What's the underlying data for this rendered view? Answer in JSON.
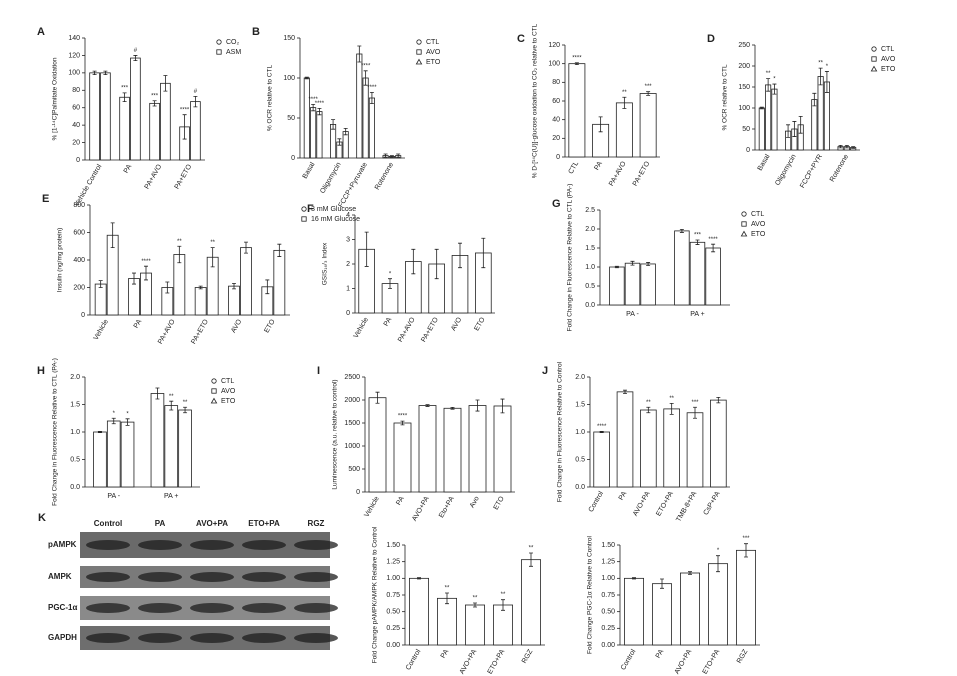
{
  "chart_data": [
    {
      "type": "bar",
      "panel": "A",
      "ylabel": "% [1-¹⁴C]Palmitate Oxidation",
      "categories": [
        "Vehicle Control",
        "PA",
        "PA+AVO",
        "PA+ETO"
      ],
      "legend": "right",
      "series": [
        {
          "name": "CO₂",
          "color": "#ffffff",
          "values": [
            100,
            72,
            65,
            38
          ],
          "errors": [
            2,
            5,
            3,
            14
          ],
          "significance": [
            null,
            "***",
            "***",
            "****"
          ]
        },
        {
          "name": "ASM",
          "color": "#ffffff",
          "values": [
            100,
            117,
            88,
            67
          ],
          "errors": [
            2,
            3,
            9,
            6
          ],
          "significance": [
            null,
            "#",
            null,
            "#"
          ]
        }
      ],
      "ylim": [
        0,
        140
      ],
      "yticks": [
        0,
        20,
        40,
        60,
        80,
        100,
        120,
        140
      ]
    },
    {
      "type": "bar",
      "panel": "B",
      "ylabel": "% OCR relative to CTL",
      "categories": [
        "Basal",
        "Oligomycin",
        "FCCP+Pyruvate",
        "Rotenone"
      ],
      "legend": "right",
      "series": [
        {
          "name": "CTL",
          "color": "#ffffff",
          "values": [
            100,
            42,
            130,
            3
          ],
          "errors": [
            1,
            6,
            10,
            2
          ],
          "significance": [
            null,
            null,
            null,
            null
          ]
        },
        {
          "name": "AVO",
          "color": "#ffffff",
          "values": [
            63,
            20,
            100,
            2
          ],
          "errors": [
            4,
            4,
            9,
            1
          ],
          "significance": [
            "****",
            null,
            "****",
            null
          ]
        },
        {
          "name": "ETO",
          "color": "#ffffff",
          "values": [
            58,
            33,
            75,
            3
          ],
          "errors": [
            4,
            4,
            7,
            2
          ],
          "significance": [
            "****",
            null,
            "****",
            null
          ]
        }
      ],
      "ylim": [
        0,
        150
      ],
      "yticks": [
        0,
        50,
        100,
        150
      ]
    },
    {
      "type": "bar",
      "panel": "C",
      "ylabel": "% D-[¹⁴C(U)]-glucose oxidation to CO₂ relative to CTL",
      "categories": [
        "CTL",
        "PA",
        "PA+AVO",
        "PA+ETO"
      ],
      "values": [
        100,
        35,
        58,
        68
      ],
      "errors": [
        1,
        8,
        6,
        2
      ],
      "significance": [
        "****",
        null,
        "**",
        "***"
      ],
      "color": "#ffffff",
      "ylim": [
        0,
        120
      ],
      "yticks": [
        0,
        20,
        40,
        60,
        80,
        100,
        120
      ]
    },
    {
      "type": "bar",
      "panel": "D",
      "ylabel": "% OCR relative to CTL",
      "categories": [
        "Basal",
        "Oligomycin",
        "FCCP+PYR",
        "Rotenone"
      ],
      "legend": "right",
      "series": [
        {
          "name": "CTL",
          "color": "#ffffff",
          "values": [
            100,
            45,
            120,
            8
          ],
          "errors": [
            2,
            15,
            15,
            3
          ],
          "significance": [
            null,
            null,
            null,
            null
          ]
        },
        {
          "name": "AVO",
          "color": "#ffffff",
          "values": [
            155,
            50,
            175,
            8
          ],
          "errors": [
            15,
            18,
            20,
            3
          ],
          "significance": [
            "**",
            null,
            "**",
            null
          ]
        },
        {
          "name": "ETO",
          "color": "#ffffff",
          "values": [
            145,
            60,
            162,
            6
          ],
          "errors": [
            12,
            20,
            25,
            2
          ],
          "significance": [
            "*",
            null,
            "*",
            null
          ]
        }
      ],
      "ylim": [
        0,
        250
      ],
      "yticks": [
        0,
        50,
        100,
        150,
        200,
        250
      ]
    },
    {
      "type": "bar",
      "panel": "E",
      "ylabel": "Insulin (ng/mg protein)",
      "categories": [
        "Vehicle",
        "PA",
        "PA+AVO",
        "PA+ETO",
        "AVO",
        "ETO"
      ],
      "legend": "right",
      "series": [
        {
          "name": "3 mM Glucose",
          "color": "#ffffff",
          "values": [
            225,
            265,
            200,
            200,
            210,
            205
          ],
          "errors": [
            25,
            40,
            40,
            10,
            20,
            50
          ],
          "significance": [
            null,
            null,
            null,
            null,
            null,
            null
          ]
        },
        {
          "name": "16 mM Glucose",
          "color": "#ffffff",
          "values": [
            580,
            305,
            440,
            420,
            490,
            470
          ],
          "errors": [
            90,
            50,
            60,
            70,
            40,
            45
          ],
          "significance": [
            null,
            "****",
            "**",
            "**",
            null,
            null
          ]
        }
      ],
      "ylim": [
        0,
        800
      ],
      "yticks": [
        0,
        200,
        400,
        600,
        800
      ]
    },
    {
      "type": "bar",
      "panel": "F",
      "ylabel": "GSIS₁₆/₃ Index",
      "categories": [
        "Vehicle",
        "PA",
        "PA+AVO",
        "PA+ETO",
        "AVO",
        "ETO"
      ],
      "values": [
        2.6,
        1.2,
        2.1,
        2.0,
        2.35,
        2.45
      ],
      "errors": [
        0.7,
        0.2,
        0.5,
        0.6,
        0.5,
        0.6
      ],
      "significance": [
        null,
        "*",
        null,
        null,
        null,
        null
      ],
      "color": "#ffffff",
      "ylim": [
        0,
        4
      ],
      "yticks": [
        0,
        1,
        2,
        3,
        4
      ]
    },
    {
      "type": "bar",
      "panel": "G",
      "ylabel": "Fold Change in Fluorescence Relative to CTL (PA-)",
      "categories": [
        "PA -",
        "PA +"
      ],
      "legend": "right",
      "series": [
        {
          "name": "CTL",
          "color": "#ffffff",
          "values": [
            1.0,
            1.95
          ],
          "errors": [
            0.02,
            0.04
          ],
          "significance": [
            null,
            null
          ]
        },
        {
          "name": "AVO",
          "color": "#ffffff",
          "values": [
            1.1,
            1.65
          ],
          "errors": [
            0.05,
            0.06
          ],
          "significance": [
            null,
            "***"
          ]
        },
        {
          "name": "ETO",
          "color": "#ffffff",
          "values": [
            1.08,
            1.5
          ],
          "errors": [
            0.04,
            0.1
          ],
          "significance": [
            null,
            "****"
          ]
        }
      ],
      "ylim": [
        0,
        2.5
      ],
      "yticks": [
        {
          "value": 0,
          "label": "0.0"
        },
        0.5,
        {
          "value": 1,
          "label": "1.0"
        },
        1.5,
        {
          "value": 2,
          "label": "2.0"
        },
        2.5
      ]
    },
    {
      "type": "bar",
      "panel": "H",
      "ylabel": "Fold Change in Fluorescence Relative to CTL (PA-)",
      "categories": [
        "PA -",
        "PA +"
      ],
      "legend": "right",
      "series": [
        {
          "name": "CTL",
          "color": "#ffffff",
          "values": [
            1.0,
            1.7
          ],
          "errors": [
            0.01,
            0.1
          ],
          "significance": [
            null,
            null
          ]
        },
        {
          "name": "AVO",
          "color": "#ffffff",
          "values": [
            1.2,
            1.48
          ],
          "errors": [
            0.05,
            0.08
          ],
          "significance": [
            "*",
            "**"
          ]
        },
        {
          "name": "ETO",
          "color": "#ffffff",
          "values": [
            1.18,
            1.4
          ],
          "errors": [
            0.06,
            0.05
          ],
          "significance": [
            "*",
            "**"
          ]
        }
      ],
      "ylim": [
        0,
        2.0
      ],
      "yticks": [
        {
          "value": 0,
          "label": "0.0"
        },
        0.5,
        {
          "value": 1,
          "label": "1.0"
        },
        1.5,
        {
          "value": 2,
          "label": "2.0"
        }
      ]
    },
    {
      "type": "bar",
      "panel": "I",
      "ylabel": "Luminescence (a.u. relative to control)",
      "categories": [
        "Vehicle",
        "PA",
        "AVO+PA",
        "Eto+PA",
        "Avo",
        "ETO"
      ],
      "values": [
        2050,
        1500,
        1880,
        1820,
        1880,
        1870
      ],
      "errors": [
        120,
        40,
        20,
        20,
        120,
        150
      ],
      "significance": [
        null,
        "****",
        null,
        null,
        null,
        null
      ],
      "color": "#ffffff",
      "ylim": [
        0,
        2500
      ],
      "yticks": [
        0,
        500,
        1000,
        1500,
        2000,
        2500
      ]
    },
    {
      "type": "bar",
      "panel": "J",
      "ylabel": "Fold Change in Fluorescence Relative to Control",
      "categories": [
        "Control",
        "PA",
        "AVO+PA",
        "ETO+PA",
        "TMB-8+PA",
        "CsP+PA"
      ],
      "values": [
        1.0,
        1.73,
        1.4,
        1.42,
        1.35,
        1.58
      ],
      "errors": [
        0.01,
        0.03,
        0.05,
        0.1,
        0.1,
        0.05
      ],
      "significance": [
        "****",
        null,
        "**",
        "**",
        "***",
        null
      ],
      "color": "#ffffff",
      "ylim": [
        0,
        2.0
      ],
      "yticks": [
        {
          "value": 0,
          "label": "0.0"
        },
        0.5,
        {
          "value": 1,
          "label": "1.0"
        },
        1.5,
        {
          "value": 2,
          "label": "2.0"
        }
      ]
    },
    {
      "type": "bar",
      "ylabel": "Fold Change pAMPK/AMPK Relative to Control",
      "categories": [
        "Control",
        "PA",
        "AVO+PA",
        "ETO+PA",
        "RGZ"
      ],
      "values": [
        1.0,
        0.7,
        0.6,
        0.6,
        1.28
      ],
      "errors": [
        0.01,
        0.08,
        0.03,
        0.08,
        0.1
      ],
      "significance": [
        null,
        "**",
        "**",
        "**",
        "**"
      ],
      "color": "#ffffff",
      "ylim": [
        0,
        1.5
      ],
      "yticks": [
        {
          "value": 0,
          "label": "0.00"
        },
        0.25,
        {
          "value": 0.5,
          "label": "0.50"
        },
        0.75,
        {
          "value": 1,
          "label": "1.00"
        },
        1.25,
        {
          "value": 1.5,
          "label": "1.50"
        }
      ]
    },
    {
      "type": "bar",
      "ylabel": "Fold Change PGC-1α Relative to Control",
      "categories": [
        "Control",
        "PA",
        "AVO+PA",
        "ETO+PA",
        "RGZ"
      ],
      "values": [
        1.0,
        0.92,
        1.08,
        1.22,
        1.42
      ],
      "errors": [
        0.01,
        0.07,
        0.02,
        0.12,
        0.1
      ],
      "significance": [
        null,
        null,
        null,
        "*",
        "***"
      ],
      "color": "#ffffff",
      "ylim": [
        0,
        1.5
      ],
      "yticks": [
        {
          "value": 0,
          "label": "0.00"
        },
        0.25,
        {
          "value": 0.5,
          "label": "0.50"
        },
        0.75,
        {
          "value": 1,
          "label": "1.00"
        },
        1.25,
        {
          "value": 1.5,
          "label": "1.50"
        }
      ]
    }
  ],
  "western_blot": {
    "panel": "K",
    "columns": [
      "Control",
      "PA",
      "AVO+PA",
      "ETO+PA",
      "RGZ"
    ],
    "rows": [
      "pAMPK",
      "AMPK",
      "PGC-1α",
      "GAPDH"
    ]
  }
}
